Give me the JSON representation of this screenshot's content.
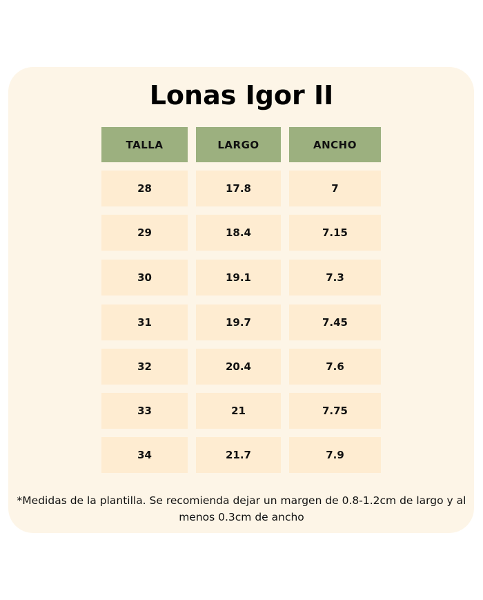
{
  "title": "Lonas Igor II",
  "table": {
    "headers": [
      "TALLA",
      "LARGO",
      "ANCHO"
    ],
    "rows": [
      [
        "28",
        "17.8",
        "7"
      ],
      [
        "29",
        "18.4",
        "7.15"
      ],
      [
        "30",
        "19.1",
        "7.3"
      ],
      [
        "31",
        "19.7",
        "7.45"
      ],
      [
        "32",
        "20.4",
        "7.6"
      ],
      [
        "33",
        "21",
        "7.75"
      ],
      [
        "34",
        "21.7",
        "7.9"
      ]
    ]
  },
  "note": "*Medidas de la plantilla. Se recomienda dejar un margen de 0.8-1.2cm de largo y al menos 0.3cm de ancho",
  "colors": {
    "panel": "#fdf5e7",
    "header": "#9cb07f",
    "cell": "#feecd1"
  }
}
